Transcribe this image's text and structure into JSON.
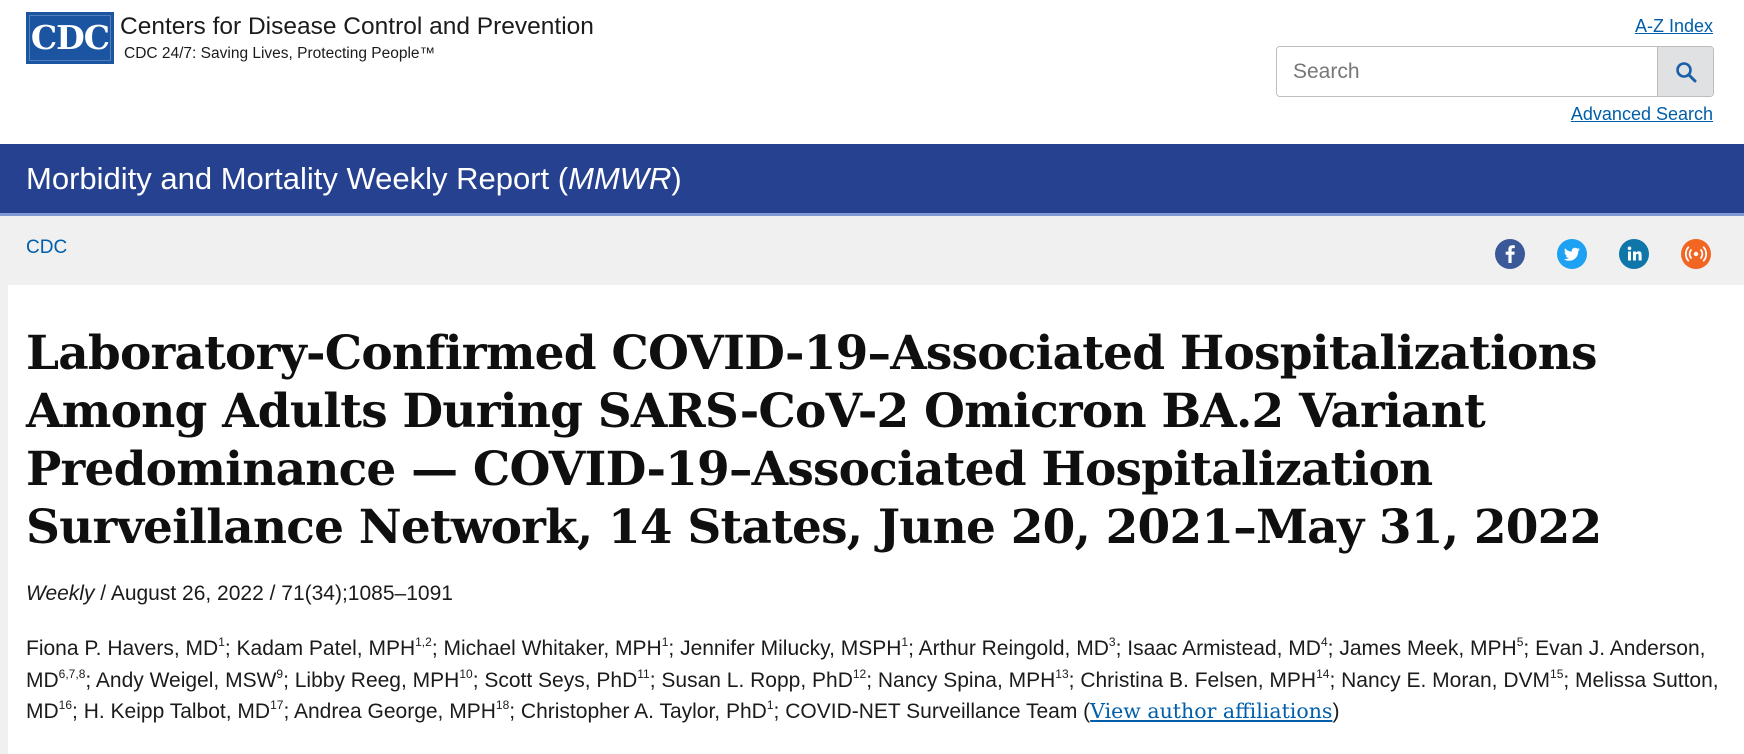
{
  "header": {
    "logo_text": "CDC",
    "org_name": "Centers for Disease Control and Prevention",
    "tagline": "CDC 24/7: Saving Lives, Protecting People™",
    "az_index": "A-Z Index",
    "search_placeholder": "Search",
    "search_button_icon": "search-icon",
    "advanced_search": "Advanced Search"
  },
  "band": {
    "title_prefix": "Morbidity and Mortality Weekly Report (",
    "title_italic": "MMWR",
    "title_suffix": ")"
  },
  "breadcrumb": {
    "item": "CDC"
  },
  "social": [
    {
      "name": "facebook",
      "icon": "facebook-icon",
      "color": "#3b5998"
    },
    {
      "name": "twitter",
      "icon": "twitter-icon",
      "color": "#1da1f2"
    },
    {
      "name": "linkedin",
      "icon": "linkedin-icon",
      "color": "#0e76a8"
    },
    {
      "name": "syndication",
      "icon": "syndication-icon",
      "color": "#f26522"
    }
  ],
  "colors": {
    "band_blue": "#264190",
    "link_blue": "#005eaa",
    "logo_blue": "#1b54a0"
  },
  "article": {
    "title": "Laboratory-Confirmed COVID-19–Associated Hospitalizations Among Adults During SARS-CoV-2 Omicron BA.2 Variant Predominance — COVID-19–Associated Hospitalization Surveillance Network, 14 States, June 20, 2021–May 31, 2022",
    "series": "Weekly",
    "meta": " / August 26, 2022 / 71(34);1085–1091",
    "authors": [
      {
        "name": "Fiona P. Havers, MD",
        "sup": "1"
      },
      {
        "name": "Kadam Patel, MPH",
        "sup": "1,2"
      },
      {
        "name": "Michael Whitaker, MPH",
        "sup": "1"
      },
      {
        "name": "Jennifer Milucky, MSPH",
        "sup": "1"
      },
      {
        "name": "Arthur Reingold, MD",
        "sup": "3"
      },
      {
        "name": "Isaac Armistead, MD",
        "sup": "4"
      },
      {
        "name": "James Meek, MPH",
        "sup": "5"
      },
      {
        "name": "Evan J. Anderson, MD",
        "sup": "6,7,8"
      },
      {
        "name": "Andy Weigel, MSW",
        "sup": "9"
      },
      {
        "name": "Libby Reeg, MPH",
        "sup": "10"
      },
      {
        "name": "Scott Seys, PhD",
        "sup": "11"
      },
      {
        "name": "Susan L. Ropp, PhD",
        "sup": "12"
      },
      {
        "name": "Nancy Spina, MPH",
        "sup": "13"
      },
      {
        "name": "Christina B. Felsen, MPH",
        "sup": "14"
      },
      {
        "name": "Nancy E. Moran, DVM",
        "sup": "15"
      },
      {
        "name": "Melissa Sutton, MD",
        "sup": "16"
      },
      {
        "name": "H. Keipp Talbot, MD",
        "sup": "17"
      },
      {
        "name": "Andrea George, MPH",
        "sup": "18"
      },
      {
        "name": "Christopher A. Taylor, PhD",
        "sup": "1"
      }
    ],
    "team": "COVID-NET Surveillance Team (",
    "affiliations_link": "View author affiliations",
    "team_close": ")"
  }
}
